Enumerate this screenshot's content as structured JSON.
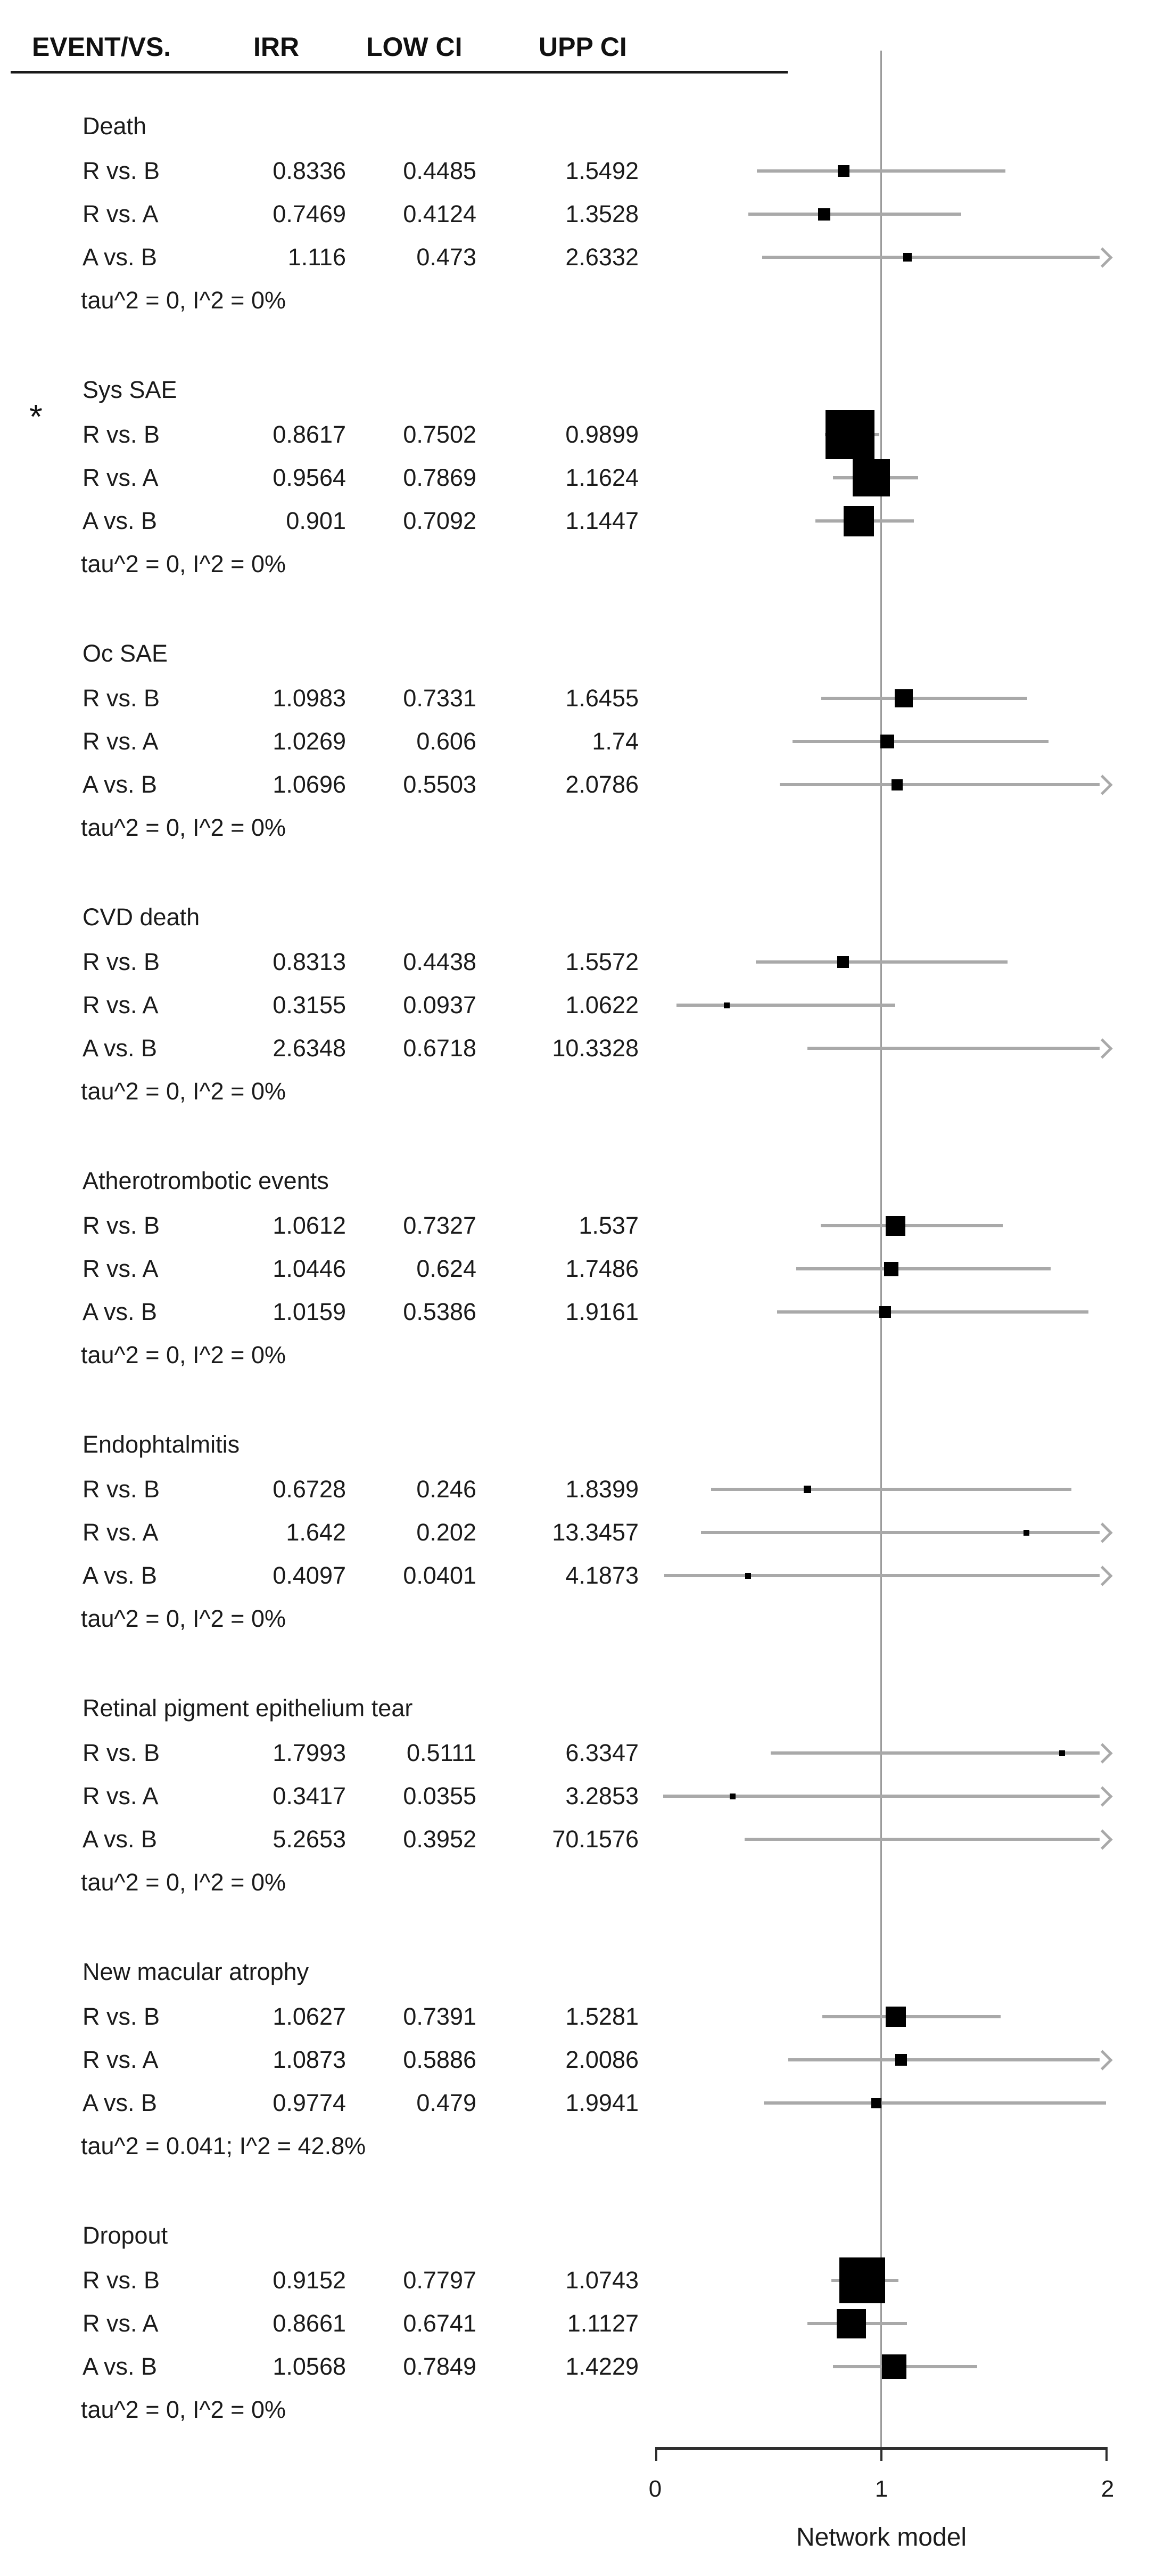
{
  "figure": {
    "columns": {
      "event_vs": "EVENT/VS.",
      "irr": "IRR",
      "low_ci": "LOW CI",
      "upp_ci": "UPP CI"
    },
    "significance_marker": "*"
  },
  "axis": {
    "xlim": [
      0,
      2
    ],
    "ticks": [
      "0",
      "1",
      "2"
    ],
    "xlabel": "Network model",
    "reference_value": 1
  },
  "colors": {
    "marker": "#000000",
    "ci_line": "#a9a9a9",
    "reference_line": "#9b9b9b",
    "axis_line": "#2e2e2e",
    "text": "#1b1b1b"
  },
  "chart_data": {
    "type": "forest",
    "xlabel": "Network model",
    "xlim": [
      0,
      2
    ],
    "legend": "square = IRR point estimate (size ~ precision), gray line = confidence interval, arrow = CI exceeds axis",
    "groups": [
      {
        "event": "Death",
        "asterisk": false,
        "heterogeneity": "tau^2 = 0, I^2 = 0%",
        "rows": [
          {
            "vs": "R vs. B",
            "irr": "0.8336",
            "low": "0.4485",
            "upp": "1.5492"
          },
          {
            "vs": "R vs. A",
            "irr": "0.7469",
            "low": "0.4124",
            "upp": "1.3528"
          },
          {
            "vs": "A vs. B",
            "irr": "1.116",
            "low": "0.473",
            "upp": "2.6332"
          }
        ]
      },
      {
        "event": "Sys SAE",
        "asterisk": true,
        "heterogeneity": "tau^2 = 0, I^2 = 0%",
        "rows": [
          {
            "vs": "R vs. B",
            "irr": "0.8617",
            "low": "0.7502",
            "upp": "0.9899"
          },
          {
            "vs": "R vs. A",
            "irr": "0.9564",
            "low": "0.7869",
            "upp": "1.1624"
          },
          {
            "vs": "A vs. B",
            "irr": "0.901",
            "low": "0.7092",
            "upp": "1.1447"
          }
        ]
      },
      {
        "event": "Oc SAE",
        "asterisk": false,
        "heterogeneity": "tau^2 = 0, I^2 = 0%",
        "rows": [
          {
            "vs": "R vs. B",
            "irr": "1.0983",
            "low": "0.7331",
            "upp": "1.6455"
          },
          {
            "vs": "R vs. A",
            "irr": "1.0269",
            "low": "0.606",
            "upp": "1.74"
          },
          {
            "vs": "A vs. B",
            "irr": "1.0696",
            "low": "0.5503",
            "upp": "2.0786"
          }
        ]
      },
      {
        "event": "CVD death",
        "asterisk": false,
        "heterogeneity": "tau^2 = 0, I^2 = 0%",
        "rows": [
          {
            "vs": "R vs. B",
            "irr": "0.8313",
            "low": "0.4438",
            "upp": "1.5572"
          },
          {
            "vs": "R vs. A",
            "irr": "0.3155",
            "low": "0.0937",
            "upp": "1.0622"
          },
          {
            "vs": "A vs. B",
            "irr": "2.6348",
            "low": "0.6718",
            "upp": "10.3328"
          }
        ]
      },
      {
        "event": "Atherotrombotic events",
        "asterisk": false,
        "heterogeneity": "tau^2 = 0, I^2 = 0%",
        "rows": [
          {
            "vs": "R vs. B",
            "irr": "1.0612",
            "low": "0.7327",
            "upp": "1.537"
          },
          {
            "vs": "R vs. A",
            "irr": "1.0446",
            "low": "0.624",
            "upp": "1.7486"
          },
          {
            "vs": "A vs. B",
            "irr": "1.0159",
            "low": "0.5386",
            "upp": "1.9161"
          }
        ]
      },
      {
        "event": "Endophtalmitis",
        "asterisk": false,
        "heterogeneity": "tau^2 = 0, I^2 = 0%",
        "rows": [
          {
            "vs": "R vs. B",
            "irr": "0.6728",
            "low": "0.246",
            "upp": "1.8399"
          },
          {
            "vs": "R vs. A",
            "irr": "1.642",
            "low": "0.202",
            "upp": "13.3457"
          },
          {
            "vs": "A vs. B",
            "irr": "0.4097",
            "low": "0.0401",
            "upp": "4.1873"
          }
        ]
      },
      {
        "event": "Retinal pigment epithelium tear",
        "asterisk": false,
        "heterogeneity": "tau^2 = 0, I^2 = 0%",
        "rows": [
          {
            "vs": "R vs. B",
            "irr": "1.7993",
            "low": "0.5111",
            "upp": "6.3347"
          },
          {
            "vs": "R vs. A",
            "irr": "0.3417",
            "low": "0.0355",
            "upp": "3.2853"
          },
          {
            "vs": "A vs. B",
            "irr": "5.2653",
            "low": "0.3952",
            "upp": "70.1576"
          }
        ]
      },
      {
        "event": "New macular atrophy",
        "asterisk": false,
        "heterogeneity": "tau^2 = 0.041; I^2 = 42.8%",
        "rows": [
          {
            "vs": "R vs. B",
            "irr": "1.0627",
            "low": "0.7391",
            "upp": "1.5281"
          },
          {
            "vs": "R vs. A",
            "irr": "1.0873",
            "low": "0.5886",
            "upp": "2.0086"
          },
          {
            "vs": "A vs. B",
            "irr": "0.9774",
            "low": "0.479",
            "upp": "1.9941"
          }
        ]
      },
      {
        "event": "Dropout",
        "asterisk": false,
        "heterogeneity": "tau^2 = 0, I^2 = 0%",
        "rows": [
          {
            "vs": "R vs. B",
            "irr": "0.9152",
            "low": "0.7797",
            "upp": "1.0743"
          },
          {
            "vs": "R vs. A",
            "irr": "0.8661",
            "low": "0.6741",
            "upp": "1.1127"
          },
          {
            "vs": "A vs. B",
            "irr": "1.0568",
            "low": "0.7849",
            "upp": "1.4229"
          }
        ]
      }
    ]
  }
}
